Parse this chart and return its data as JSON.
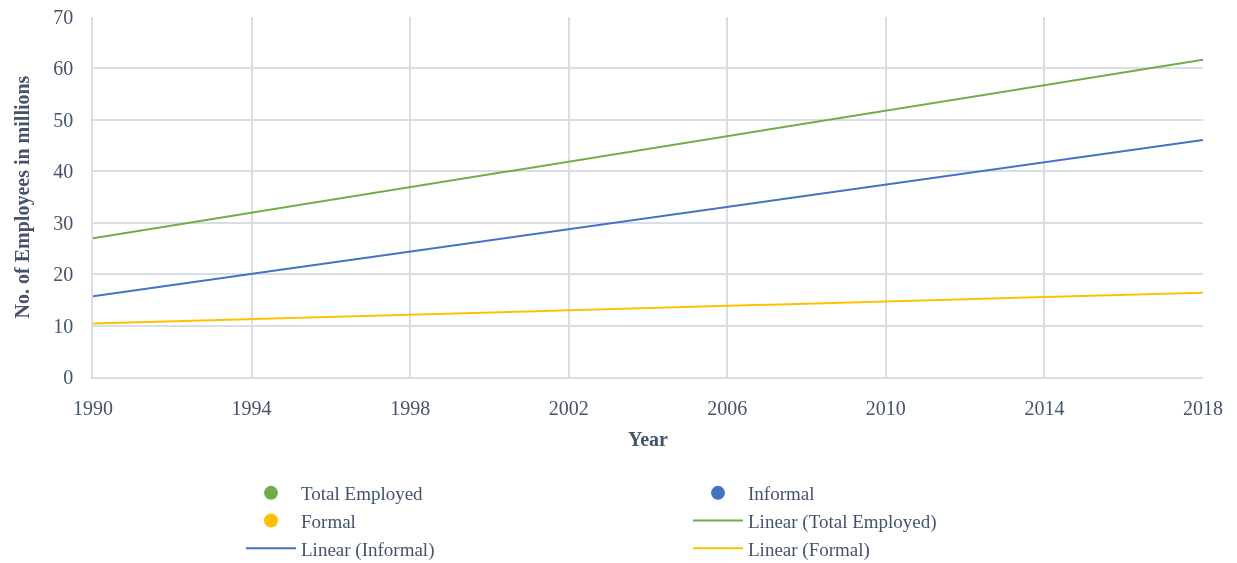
{
  "chart_data": {
    "type": "line",
    "xlabel": "Year",
    "ylabel": "No. of Employees in millions",
    "x": [
      1990,
      2018
    ],
    "xlim": [
      1990,
      2018
    ],
    "xticks": [
      1990,
      1994,
      1998,
      2002,
      2006,
      2010,
      2014,
      2018
    ],
    "ylim": [
      0,
      70
    ],
    "yticks": [
      0,
      10,
      20,
      30,
      40,
      50,
      60,
      70
    ],
    "grid": true,
    "legend": "bottom",
    "series": [
      {
        "name": "Total Employed",
        "type": "scatter",
        "marker": "circle",
        "color": "#70ad47",
        "values": [
          null,
          null
        ]
      },
      {
        "name": "Informal",
        "type": "scatter",
        "marker": "circle",
        "color": "#4472c4",
        "values": [
          null,
          null
        ]
      },
      {
        "name": "Formal",
        "type": "scatter",
        "marker": "circle",
        "color": "#ffc000",
        "values": [
          null,
          null
        ]
      },
      {
        "name": "Linear (Total Employed)",
        "color": "#70ad47",
        "values": [
          27.0,
          61.7
        ]
      },
      {
        "name": "Linear (Informal)",
        "color": "#4472c4",
        "values": [
          15.7,
          46.1
        ]
      },
      {
        "name": "Linear (Formal)",
        "color": "#ffc000",
        "values": [
          10.4,
          16.4
        ]
      }
    ]
  }
}
